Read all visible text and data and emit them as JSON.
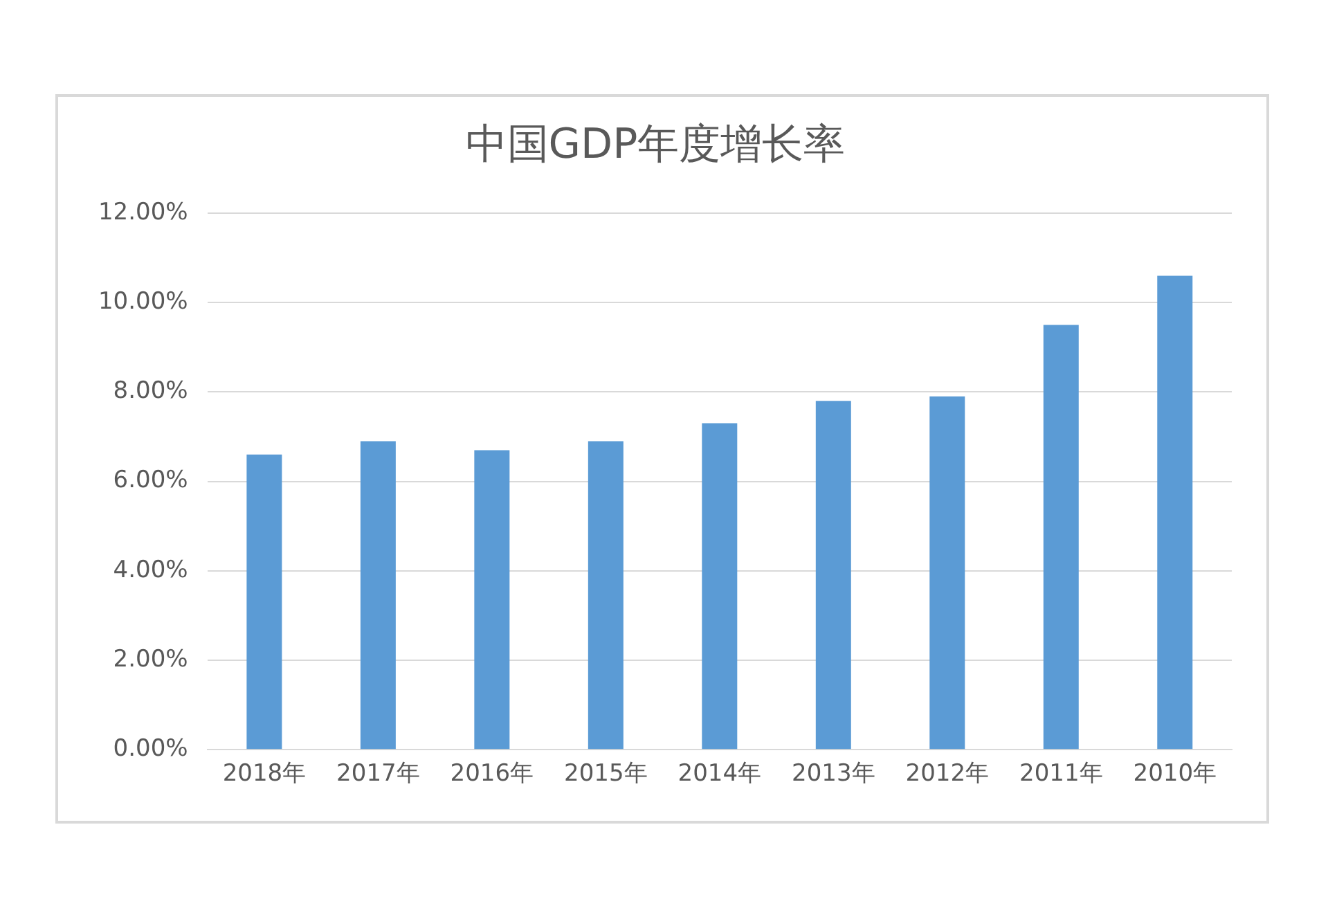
{
  "chart_data": {
    "type": "bar",
    "title": "中国GDP年度增长率",
    "categories": [
      "2018年",
      "2017年",
      "2016年",
      "2015年",
      "2014年",
      "2013年",
      "2012年",
      "2011年",
      "2010年"
    ],
    "values": [
      6.6,
      6.9,
      6.7,
      6.9,
      7.3,
      7.8,
      7.9,
      9.5,
      10.6
    ],
    "color": "#5b9bd5",
    "ylim": [
      0,
      12
    ],
    "yticks": [
      {
        "value": 0,
        "label": "0.00%"
      },
      {
        "value": 2,
        "label": "2.00%"
      },
      {
        "value": 4,
        "label": "4.00%"
      },
      {
        "value": 6,
        "label": "6.00%"
      },
      {
        "value": 8,
        "label": "8.00%"
      },
      {
        "value": 10,
        "label": "10.00%"
      },
      {
        "value": 12,
        "label": "12.00%"
      }
    ],
    "grid": "y",
    "legend": false
  }
}
